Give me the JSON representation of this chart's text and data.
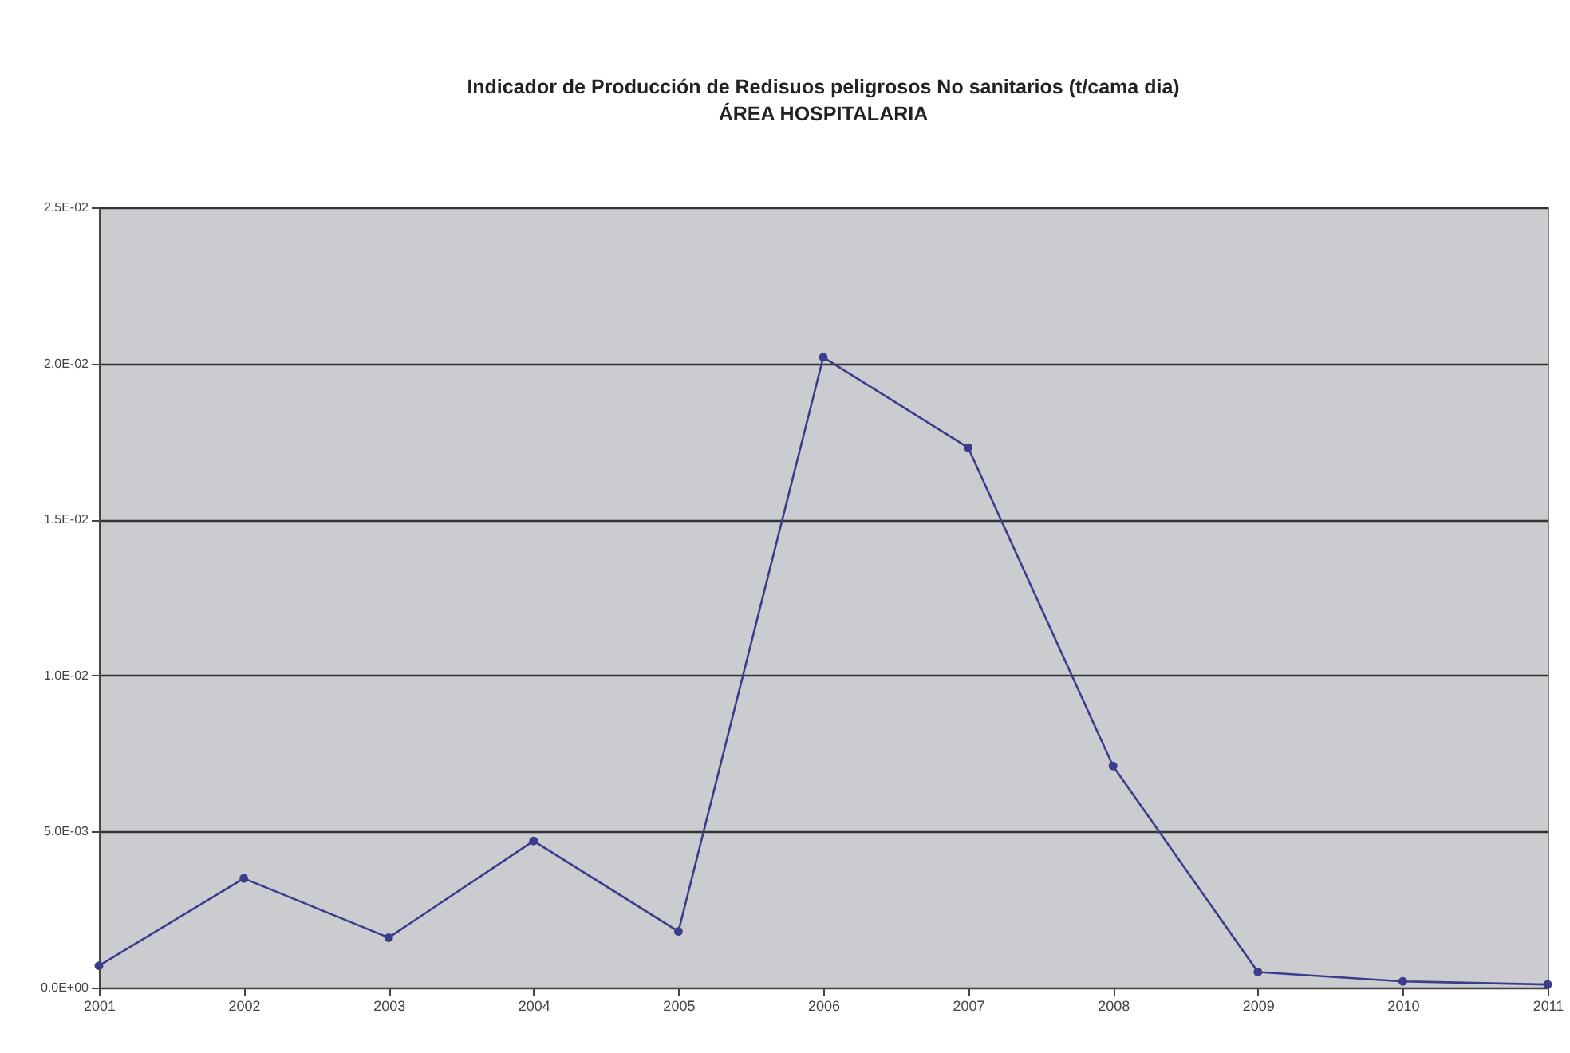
{
  "chart_data": {
    "type": "line",
    "title": [
      "Indicador de Producción de Redisuos peligrosos No sanitarios (t/cama dia)",
      "ÁREA HOSPITALARIA"
    ],
    "categories": [
      "2001",
      "2002",
      "2003",
      "2004",
      "2005",
      "2006",
      "2007",
      "2008",
      "2009",
      "2010",
      "2011"
    ],
    "series": [
      {
        "color": "#3c3c8c",
        "values": [
          0.0007,
          0.0035,
          0.0016,
          0.0047,
          0.0018,
          0.0202,
          0.0173,
          0.0071,
          0.0005,
          0.0002,
          0.0001
        ]
      }
    ],
    "ylim": [
      0,
      0.025
    ],
    "yticks": [
      {
        "value": 0,
        "label": "0.0E+00"
      },
      {
        "value": 0.005,
        "label": "5.0E-03"
      },
      {
        "value": 0.01,
        "label": "1.0E-02"
      },
      {
        "value": 0.015,
        "label": "1.5E-02"
      },
      {
        "value": 0.02,
        "label": "2.0E-02"
      },
      {
        "value": 0.025,
        "label": "2.5E-02"
      }
    ],
    "grid": "y",
    "marker": "circle",
    "line_style": "solid"
  }
}
